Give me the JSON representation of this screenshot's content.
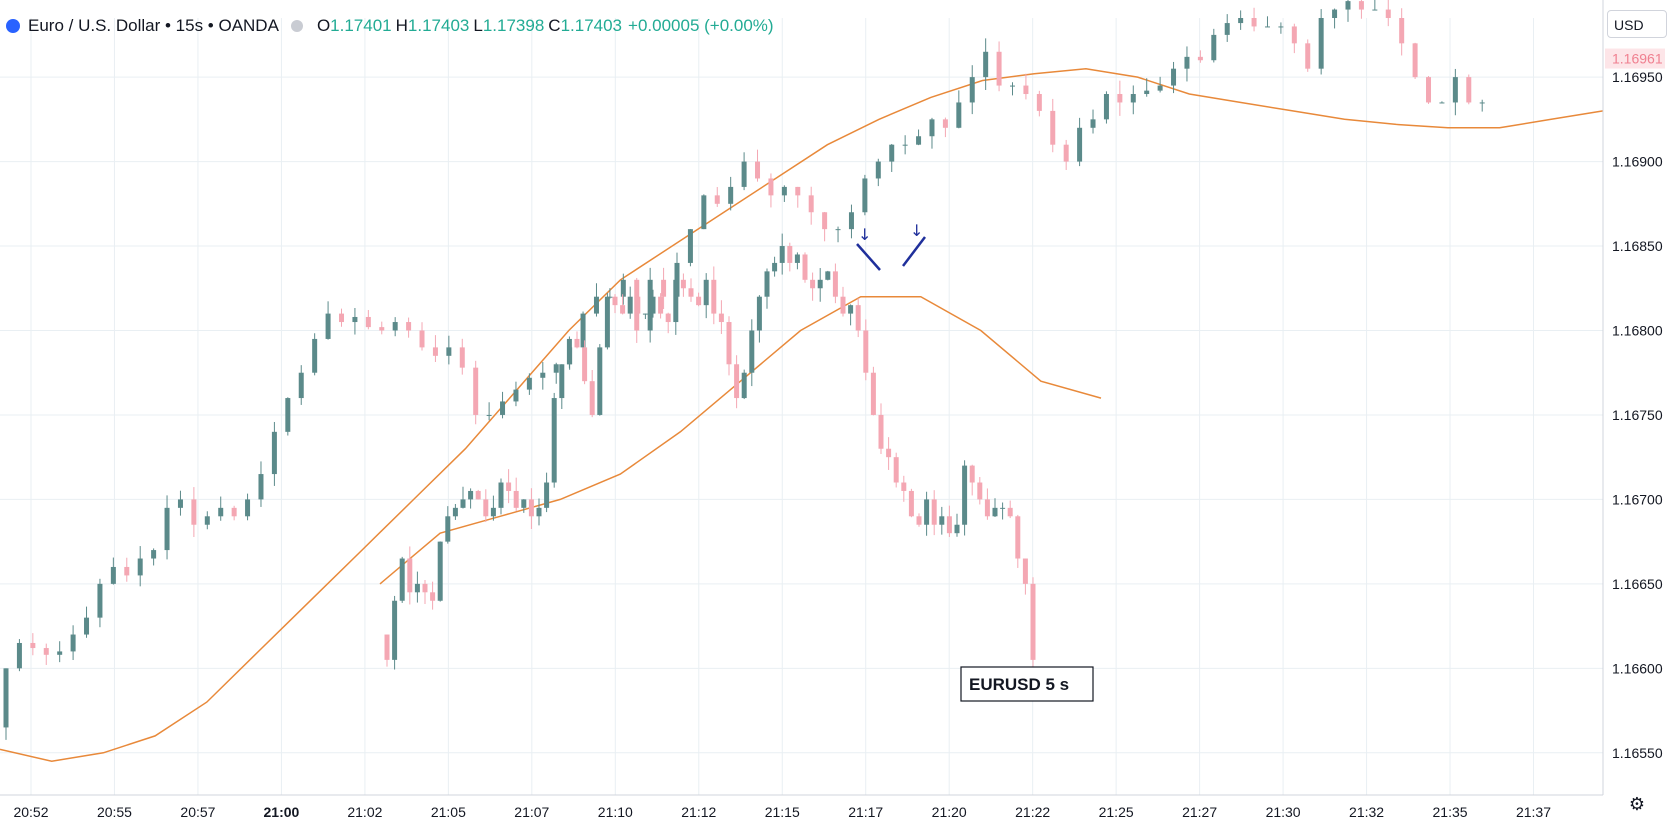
{
  "header": {
    "title": "Euro / U.S. Dollar • 15s • OANDA",
    "o_label": "O",
    "o_value": "1.17401",
    "h_label": "H",
    "h_value": "1.17403",
    "l_label": "L",
    "l_value": "1.17398",
    "c_label": "C",
    "c_value": "1.17403",
    "change": "+0.00005 (+0.00%)"
  },
  "currency_button": "USD",
  "settings_icon": "gear-icon",
  "colors": {
    "up": "#5b8a8a",
    "down": "#f4a7b3",
    "ma": "#e8893a",
    "annotation": "#1f2f9b",
    "grid": "#e9eff3",
    "last_price_bg": "#fde5e8",
    "last_price_text": "#f08090"
  },
  "chart_data": {
    "type": "candlestick",
    "yaxis": {
      "ticks": [
        "1.16950",
        "1.16900",
        "1.16850",
        "1.16800",
        "1.16750",
        "1.16700",
        "1.16650",
        "1.16600",
        "1.16550"
      ],
      "range": [
        1.16525,
        1.16985
      ]
    },
    "last_price": "1.16961",
    "xaxis": {
      "ticks": [
        "20:52",
        "20:55",
        "20:57",
        "21:00",
        "21:02",
        "21:05",
        "21:07",
        "21:10",
        "21:12",
        "21:15",
        "21:17",
        "21:20",
        "21:22",
        "21:25",
        "21:27",
        "21:30",
        "21:32",
        "21:35",
        "21:37"
      ],
      "bold_tick": "21:00"
    },
    "series": [
      {
        "role": "main",
        "closes": [
          1.166,
          1.16615,
          1.16612,
          1.16608,
          1.1661,
          1.1662,
          1.1663,
          1.1665,
          1.1666,
          1.16655,
          1.16665,
          1.1667,
          1.16695,
          1.167,
          1.16685,
          1.1669,
          1.16695,
          1.1669,
          1.167,
          1.16715,
          1.1674,
          1.1676,
          1.16775,
          1.16795,
          1.1681,
          1.16805,
          1.16808,
          1.16802,
          1.168,
          1.16805,
          1.168,
          1.1679,
          1.16785,
          1.1679,
          1.16778,
          1.1675,
          1.1675,
          1.16758,
          1.16765,
          1.16772,
          1.16775,
          1.1678,
          1.1679,
          1.1681,
          1.1682,
          1.1682,
          1.1683,
          1.168,
          1.1683,
          1.1682,
          1.1684,
          1.1686,
          1.1688,
          1.16875,
          1.16885,
          1.169,
          1.1689,
          1.1688,
          1.16885,
          1.1688,
          1.1687,
          1.1686,
          1.1686,
          1.1687,
          1.1689,
          1.169,
          1.1691,
          1.1691,
          1.16915,
          1.16925,
          1.1692,
          1.16935,
          1.1695,
          1.16965,
          1.16945,
          1.16945,
          1.1694,
          1.1693,
          1.1691,
          1.169,
          1.1692,
          1.16925,
          1.1694,
          1.16935,
          1.1694,
          1.16942,
          1.16945,
          1.16955,
          1.16962,
          1.1696,
          1.16975,
          1.16982,
          1.16985,
          1.1698,
          1.1698,
          1.1698,
          1.1697,
          1.16955,
          1.16985,
          1.1699,
          1.16995,
          1.1699,
          1.1699,
          1.16985,
          1.1697,
          1.1695,
          1.16935,
          1.16935,
          1.1695,
          1.16935,
          1.16935
        ]
      },
      {
        "role": "ma_main"
      },
      {
        "role": "overlay"
      },
      {
        "role": "ma_overlay"
      }
    ],
    "annotations": [
      {
        "type": "marker",
        "text": "↓"
      },
      {
        "type": "marker",
        "text": "↓"
      },
      {
        "type": "label",
        "text": "EURUSD  5 s"
      }
    ]
  }
}
